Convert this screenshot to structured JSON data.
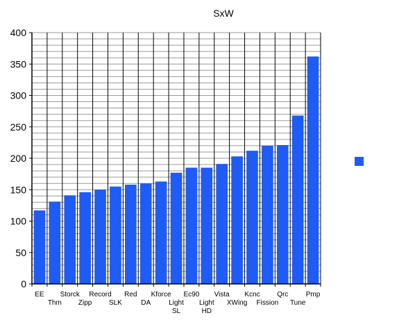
{
  "chart_data": {
    "type": "bar",
    "title": "SxW",
    "xlabel": "",
    "ylabel": "",
    "ylim": [
      0,
      400
    ],
    "yticks": [
      0,
      50,
      100,
      150,
      200,
      250,
      300,
      350,
      400
    ],
    "minor_grid_step": 10,
    "grid": true,
    "legend": "right",
    "bar_color": "#1f5bf5",
    "categories": [
      "EE",
      "Thm",
      "Storck",
      "Zipp",
      "Record",
      "SLK",
      "Red",
      "DA",
      "Kforce",
      "Light SL",
      "Ec90",
      "Light HD",
      "Vista",
      "XWing",
      "Kcnc",
      "Fission",
      "Qrc",
      "Tune",
      "Pmp"
    ],
    "category_labels": [
      [
        "EE"
      ],
      [
        "Thm"
      ],
      [
        "Storck"
      ],
      [
        "Zipp"
      ],
      [
        "Record"
      ],
      [
        "SLK"
      ],
      [
        "Red"
      ],
      [
        "DA"
      ],
      [
        "Kforce"
      ],
      [
        "Light",
        "SL"
      ],
      [
        "Ec90"
      ],
      [
        "Light",
        "HD"
      ],
      [
        "Vista"
      ],
      [
        "XWing"
      ],
      [
        "Kcnc"
      ],
      [
        "Fission"
      ],
      [
        "Qrc"
      ],
      [
        "Tune"
      ],
      [
        "Pmp"
      ]
    ],
    "values": [
      117,
      131,
      141,
      146,
      150,
      155,
      158,
      160,
      163,
      177,
      185,
      185,
      191,
      203,
      212,
      220,
      221,
      268,
      362
    ]
  }
}
